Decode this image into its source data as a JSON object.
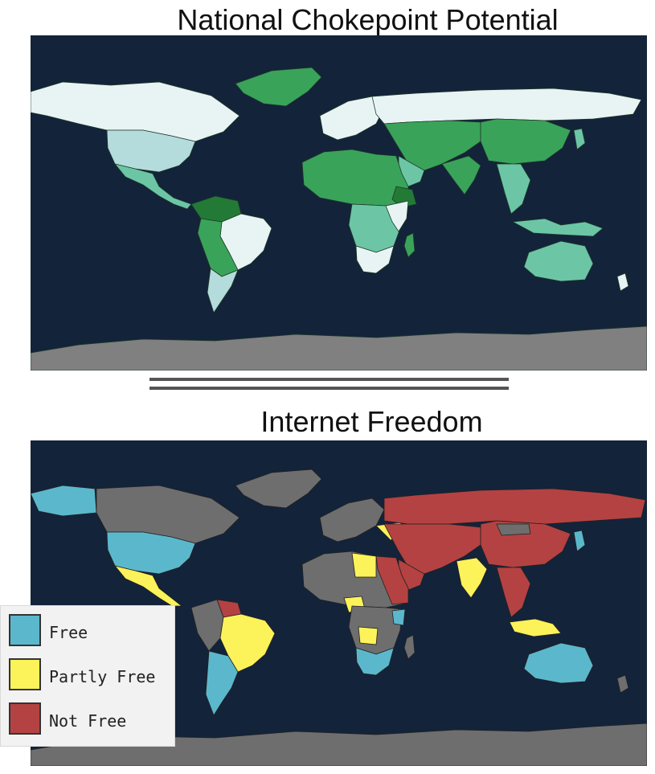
{
  "top_map": {
    "title": "National Chokepoint Potential",
    "colors": {
      "ocean": "#13233a",
      "no_data": "#808080",
      "very_low": "#e8f4f4",
      "low": "#b4dcdc",
      "medium": "#6cc6a6",
      "high": "#3aa35a",
      "very_high": "#237a36"
    }
  },
  "bottom_map": {
    "title": "Internet Freedom",
    "colors": {
      "ocean": "#13233a",
      "no_data": "#6e6e6e",
      "free": "#5bb8cc",
      "partly_free": "#fcf25a",
      "not_free": "#b44242"
    }
  },
  "legend": {
    "items": [
      {
        "label": "Free",
        "color": "#5bb8cc"
      },
      {
        "label": "Partly Free",
        "color": "#fcf25a"
      },
      {
        "label": "Not Free",
        "color": "#b44242"
      }
    ]
  }
}
